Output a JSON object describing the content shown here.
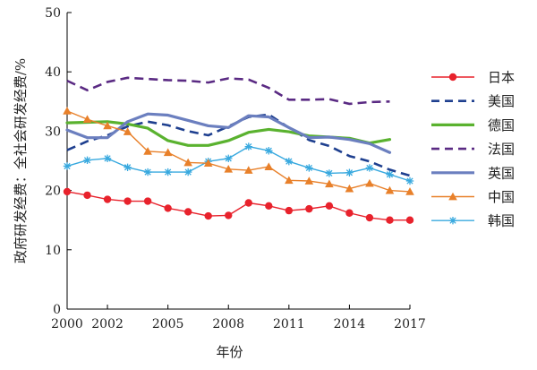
{
  "chart_data": {
    "type": "line",
    "xlabel": "年份",
    "ylabel": "政府研发经费：全社会研发经费/%",
    "xlim": [
      2000,
      2017
    ],
    "ylim": [
      0,
      50
    ],
    "x_ticks": [
      2000,
      2002,
      2005,
      2008,
      2011,
      2014,
      2017
    ],
    "y_ticks": [
      0,
      10,
      20,
      30,
      40,
      50
    ],
    "grid": false,
    "legend_position": "right",
    "series": [
      {
        "name": "日本",
        "color": "#e8222c",
        "dash": "solid",
        "marker": "circle",
        "x": [
          2000,
          2001,
          2002,
          2003,
          2004,
          2005,
          2006,
          2007,
          2008,
          2009,
          2010,
          2011,
          2012,
          2013,
          2014,
          2015,
          2016,
          2017
        ],
        "y": [
          19.8,
          19.2,
          18.5,
          18.2,
          18.2,
          17.0,
          16.4,
          15.7,
          15.8,
          17.9,
          17.4,
          16.6,
          16.9,
          17.4,
          16.2,
          15.4,
          15.0,
          15.0
        ]
      },
      {
        "name": "美国",
        "color": "#1e3f8f",
        "dash": "dashed",
        "marker": "none",
        "x": [
          2000,
          2001,
          2002,
          2003,
          2004,
          2005,
          2006,
          2007,
          2008,
          2009,
          2010,
          2011,
          2012,
          2013,
          2014,
          2015,
          2016,
          2017
        ],
        "y": [
          26.8,
          28.3,
          29.3,
          30.8,
          31.6,
          31.0,
          30.0,
          29.3,
          30.8,
          32.4,
          32.8,
          30.6,
          28.5,
          27.5,
          25.8,
          24.9,
          23.5,
          22.5
        ]
      },
      {
        "name": "德国",
        "color": "#5ab22f",
        "dash": "solid",
        "marker": "none",
        "x": [
          2000,
          2001,
          2002,
          2003,
          2004,
          2005,
          2006,
          2007,
          2008,
          2009,
          2010,
          2011,
          2012,
          2013,
          2014,
          2015,
          2016
        ],
        "y": [
          31.4,
          31.5,
          31.6,
          31.2,
          30.5,
          28.4,
          27.6,
          27.6,
          28.4,
          29.8,
          30.3,
          29.9,
          29.2,
          29.0,
          28.8,
          28.0,
          28.6
        ]
      },
      {
        "name": "法国",
        "color": "#5a2a83",
        "dash": "dashed",
        "marker": "none",
        "x": [
          2000,
          2001,
          2002,
          2003,
          2004,
          2005,
          2006,
          2007,
          2008,
          2009,
          2010,
          2011,
          2012,
          2013,
          2014,
          2015,
          2016
        ],
        "y": [
          38.5,
          36.9,
          38.3,
          39.0,
          38.8,
          38.6,
          38.5,
          38.2,
          38.9,
          38.7,
          37.3,
          35.3,
          35.3,
          35.4,
          34.6,
          34.9,
          35.0
        ]
      },
      {
        "name": "英国",
        "color": "#6b7fbf",
        "dash": "solid",
        "marker": "none",
        "x": [
          2000,
          2001,
          2002,
          2003,
          2004,
          2005,
          2006,
          2007,
          2008,
          2009,
          2010,
          2011,
          2012,
          2013,
          2014,
          2015,
          2016
        ],
        "y": [
          30.2,
          28.9,
          28.9,
          31.6,
          32.9,
          32.7,
          31.8,
          30.9,
          30.6,
          32.6,
          32.4,
          30.6,
          28.9,
          29.0,
          28.6,
          27.9,
          26.4
        ]
      },
      {
        "name": "中国",
        "color": "#e8802a",
        "dash": "solid",
        "marker": "triangle",
        "x": [
          2000,
          2001,
          2002,
          2003,
          2004,
          2005,
          2006,
          2007,
          2008,
          2009,
          2010,
          2011,
          2012,
          2013,
          2014,
          2015,
          2016,
          2017
        ],
        "y": [
          33.4,
          32.0,
          30.9,
          29.9,
          26.6,
          26.4,
          24.7,
          24.6,
          23.6,
          23.4,
          24.0,
          21.7,
          21.6,
          21.1,
          20.3,
          21.2,
          20.0,
          19.8
        ]
      },
      {
        "name": "韩国",
        "color": "#38a9df",
        "dash": "solid",
        "marker": "star",
        "x": [
          2000,
          2001,
          2002,
          2003,
          2004,
          2005,
          2006,
          2007,
          2008,
          2009,
          2010,
          2011,
          2012,
          2013,
          2014,
          2015,
          2016,
          2017
        ],
        "y": [
          24.1,
          25.1,
          25.4,
          23.9,
          23.1,
          23.1,
          23.1,
          24.9,
          25.4,
          27.4,
          26.7,
          24.9,
          23.8,
          22.9,
          23.0,
          23.8,
          22.7,
          21.6
        ]
      }
    ]
  }
}
